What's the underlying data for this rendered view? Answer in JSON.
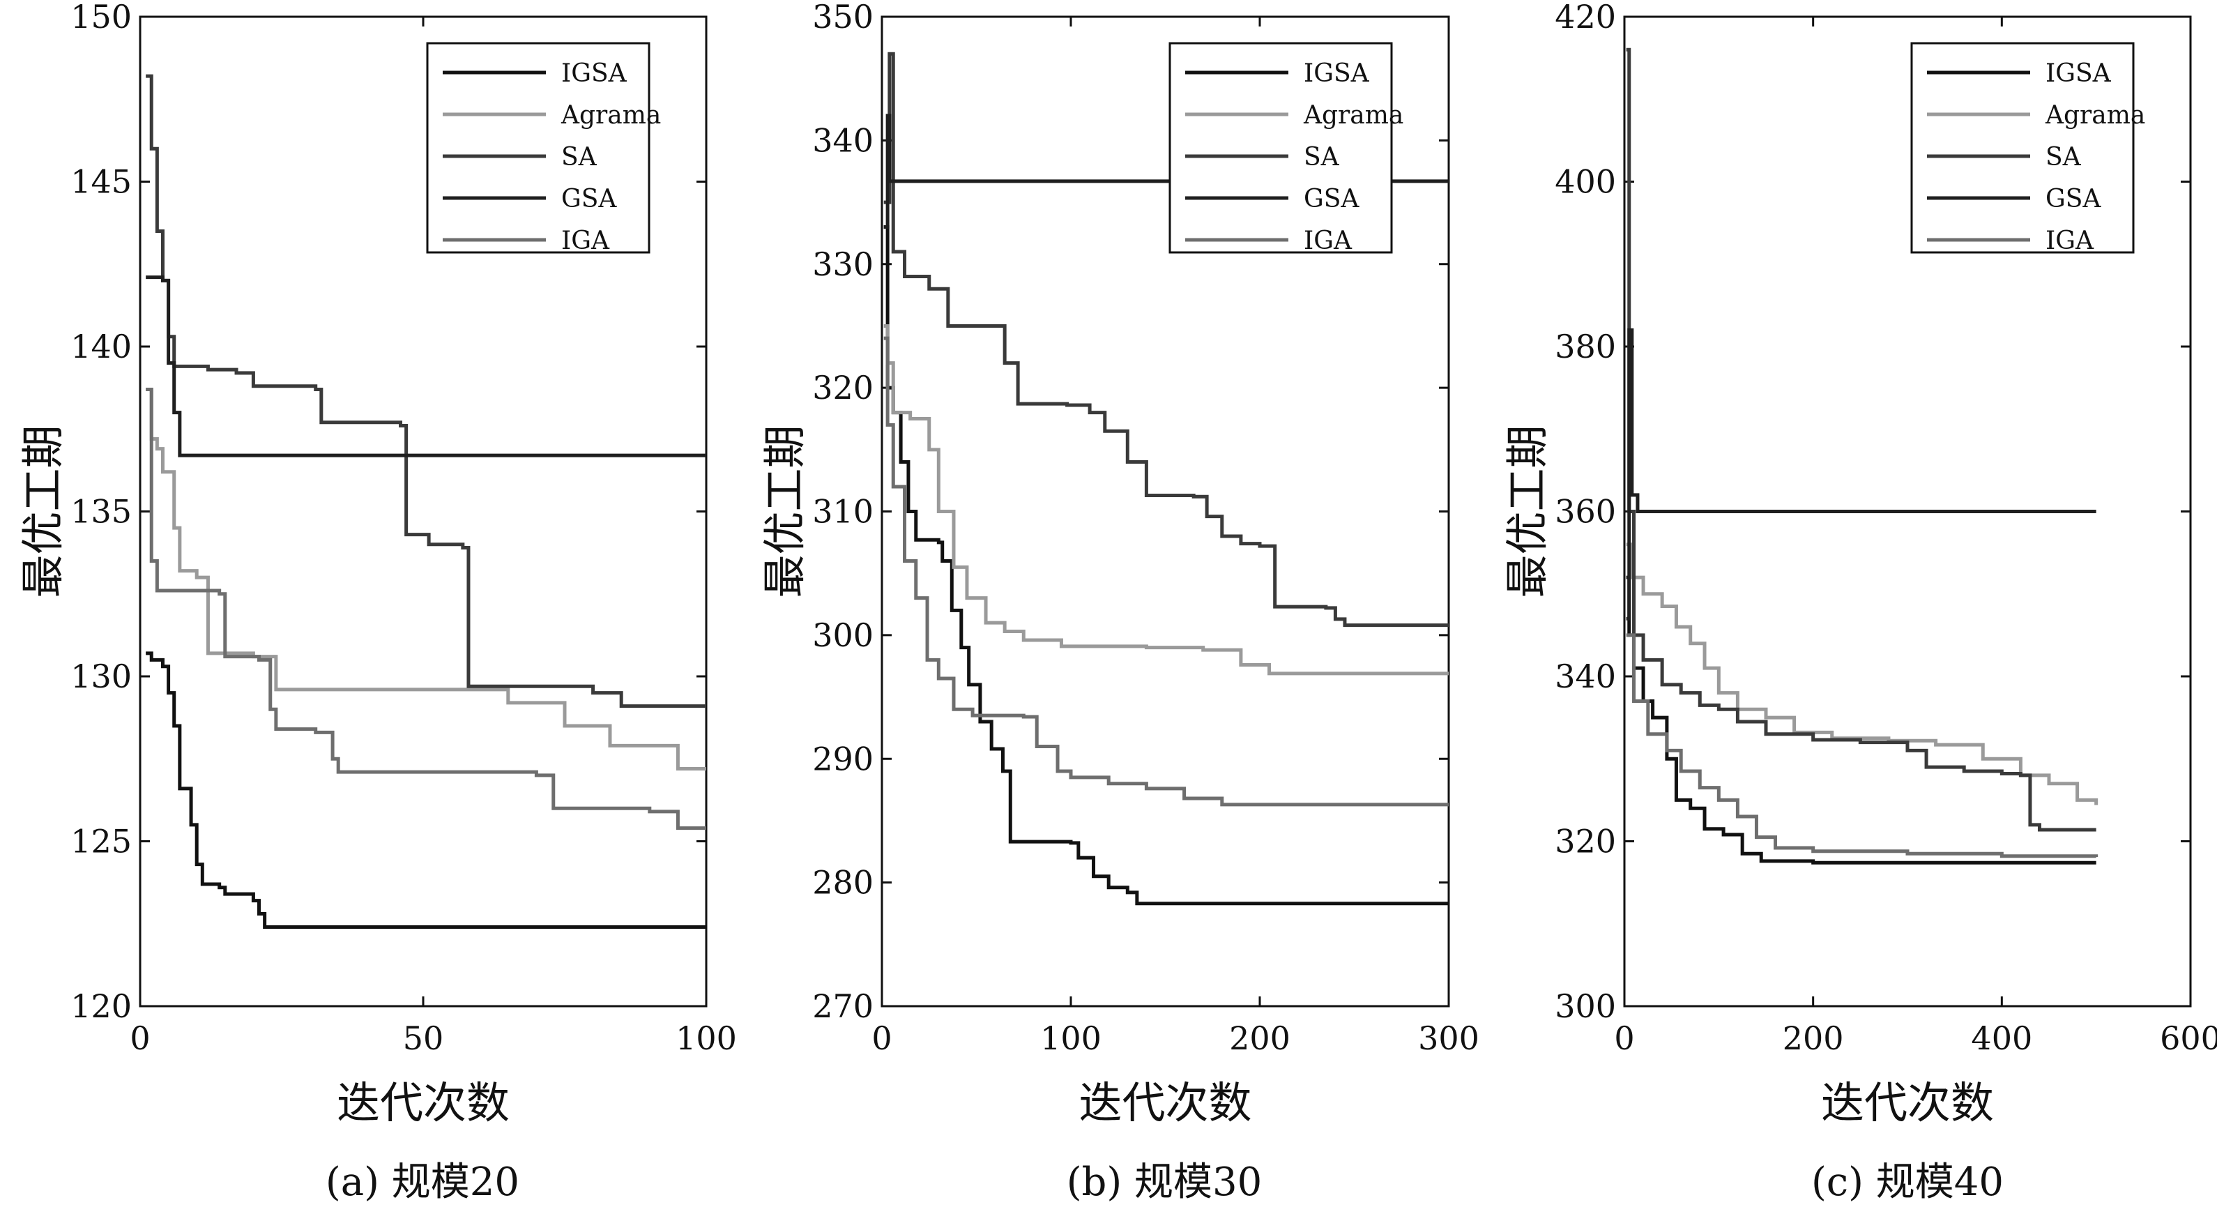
{
  "chart_data": [
    {
      "type": "line",
      "caption": "(a) 规模20",
      "xlabel": "迭代次数",
      "ylabel": "最优工期",
      "xlim": [
        0,
        100
      ],
      "ylim": [
        120,
        150
      ],
      "xticks": [
        0,
        50,
        100
      ],
      "yticks": [
        120,
        125,
        130,
        135,
        140,
        145,
        150
      ],
      "legend_position": "top-right",
      "series": [
        {
          "name": "IGSA",
          "color": "#111111",
          "points": [
            [
              1,
              130.7
            ],
            [
              2,
              130.5
            ],
            [
              4,
              130.3
            ],
            [
              5,
              129.5
            ],
            [
              6,
              128.5
            ],
            [
              7,
              126.6
            ],
            [
              9,
              125.5
            ],
            [
              10,
              124.3
            ],
            [
              11,
              123.7
            ],
            [
              14,
              123.6
            ],
            [
              15,
              123.4
            ],
            [
              20,
              123.2
            ],
            [
              21,
              122.8
            ],
            [
              22,
              122.4
            ],
            [
              100,
              122.4
            ]
          ]
        },
        {
          "name": "Agrama",
          "color": "#9a9a9a",
          "points": [
            [
              1,
              138.7
            ],
            [
              2,
              137.2
            ],
            [
              3,
              136.9
            ],
            [
              4,
              136.2
            ],
            [
              6,
              134.5
            ],
            [
              7,
              133.2
            ],
            [
              10,
              133.0
            ],
            [
              12,
              130.7
            ],
            [
              20,
              130.6
            ],
            [
              24,
              129.6
            ],
            [
              50,
              129.6
            ],
            [
              58,
              129.6
            ],
            [
              65,
              129.2
            ],
            [
              75,
              128.5
            ],
            [
              83,
              127.9
            ],
            [
              95,
              127.2
            ],
            [
              100,
              127.2
            ]
          ]
        },
        {
          "name": "SA",
          "color": "#3a3a3a",
          "points": [
            [
              1,
              148.2
            ],
            [
              2,
              146.0
            ],
            [
              3,
              143.5
            ],
            [
              4,
              142.0
            ],
            [
              5,
              140.3
            ],
            [
              6,
              139.4
            ],
            [
              12,
              139.3
            ],
            [
              17,
              139.2
            ],
            [
              20,
              138.8
            ],
            [
              31,
              138.7
            ],
            [
              32,
              137.7
            ],
            [
              46,
              137.6
            ],
            [
              47,
              134.3
            ],
            [
              51,
              134.0
            ],
            [
              57,
              133.9
            ],
            [
              58,
              129.7
            ],
            [
              80,
              129.5
            ],
            [
              85,
              129.1
            ],
            [
              100,
              129.1
            ]
          ]
        },
        {
          "name": "GSA",
          "color": "#1f1f1f",
          "points": [
            [
              1,
              142.1
            ],
            [
              4,
              142.0
            ],
            [
              5,
              139.5
            ],
            [
              6,
              138.0
            ],
            [
              7,
              136.7
            ],
            [
              100,
              136.7
            ]
          ]
        },
        {
          "name": "IGA",
          "color": "#6e6e6e",
          "points": [
            [
              1,
              138.7
            ],
            [
              2,
              133.5
            ],
            [
              3,
              132.6
            ],
            [
              14,
              132.5
            ],
            [
              15,
              130.6
            ],
            [
              21,
              130.5
            ],
            [
              23,
              129.0
            ],
            [
              24,
              128.4
            ],
            [
              31,
              128.3
            ],
            [
              34,
              127.5
            ],
            [
              35,
              127.1
            ],
            [
              70,
              127.0
            ],
            [
              73,
              126.0
            ],
            [
              90,
              125.9
            ],
            [
              95,
              125.4
            ],
            [
              100,
              125.4
            ]
          ]
        }
      ]
    },
    {
      "type": "line",
      "caption": "(b) 规模30",
      "xlabel": "迭代次数",
      "ylabel": "最优工期",
      "xlim": [
        0,
        300
      ],
      "ylim": [
        270,
        350
      ],
      "xticks": [
        0,
        100,
        200,
        300
      ],
      "yticks": [
        270,
        280,
        290,
        300,
        310,
        320,
        330,
        340,
        350
      ],
      "legend_position": "top-right",
      "series": [
        {
          "name": "IGSA",
          "color": "#111111",
          "points": [
            [
              1,
              333
            ],
            [
              3,
              320
            ],
            [
              6,
              318
            ],
            [
              10,
              314
            ],
            [
              14,
              310
            ],
            [
              18,
              307.7
            ],
            [
              30,
              307.5
            ],
            [
              32,
              306
            ],
            [
              37,
              302
            ],
            [
              42,
              299
            ],
            [
              46,
              296
            ],
            [
              52,
              293
            ],
            [
              58,
              290.8
            ],
            [
              64,
              289
            ],
            [
              68,
              283.3
            ],
            [
              100,
              283.2
            ],
            [
              104,
              282
            ],
            [
              112,
              280.5
            ],
            [
              120,
              279.6
            ],
            [
              130,
              279.2
            ],
            [
              135,
              278.3
            ],
            [
              300,
              278.3
            ]
          ]
        },
        {
          "name": "Agrama",
          "color": "#9a9a9a",
          "points": [
            [
              1,
              325
            ],
            [
              3,
              322
            ],
            [
              6,
              318
            ],
            [
              15,
              317.5
            ],
            [
              25,
              315
            ],
            [
              30,
              310
            ],
            [
              38,
              305.5
            ],
            [
              45,
              303
            ],
            [
              55,
              301
            ],
            [
              65,
              300.3
            ],
            [
              75,
              299.6
            ],
            [
              95,
              299.1
            ],
            [
              140,
              299
            ],
            [
              170,
              298.8
            ],
            [
              190,
              297.6
            ],
            [
              205,
              296.9
            ],
            [
              300,
              296.9
            ]
          ]
        },
        {
          "name": "SA",
          "color": "#3a3a3a",
          "points": [
            [
              1,
              335
            ],
            [
              4,
              347
            ],
            [
              6,
              331
            ],
            [
              12,
              329
            ],
            [
              25,
              328
            ],
            [
              35,
              325
            ],
            [
              62,
              325
            ],
            [
              65,
              322
            ],
            [
              72,
              318.7
            ],
            [
              98,
              318.6
            ],
            [
              110,
              318
            ],
            [
              118,
              316.5
            ],
            [
              130,
              314
            ],
            [
              140,
              311.3
            ],
            [
              165,
              311.2
            ],
            [
              172,
              309.6
            ],
            [
              180,
              308
            ],
            [
              190,
              307.4
            ],
            [
              200,
              307.2
            ],
            [
              208,
              302.3
            ],
            [
              235,
              302.2
            ],
            [
              240,
              301.3
            ],
            [
              245,
              300.8
            ],
            [
              300,
              300.8
            ]
          ]
        },
        {
          "name": "GSA",
          "color": "#1f1f1f",
          "points": [
            [
              1,
              333
            ],
            [
              3,
              342
            ],
            [
              4,
              336.7
            ],
            [
              300,
              336.7
            ]
          ]
        },
        {
          "name": "IGA",
          "color": "#6e6e6e",
          "points": [
            [
              1,
              324
            ],
            [
              3,
              317
            ],
            [
              6,
              312
            ],
            [
              12,
              306
            ],
            [
              18,
              303
            ],
            [
              24,
              298
            ],
            [
              30,
              296.5
            ],
            [
              38,
              294
            ],
            [
              48,
              293.5
            ],
            [
              75,
              293.4
            ],
            [
              82,
              291
            ],
            [
              93,
              289
            ],
            [
              100,
              288.5
            ],
            [
              120,
              288
            ],
            [
              140,
              287.6
            ],
            [
              160,
              286.8
            ],
            [
              180,
              286.3
            ],
            [
              300,
              286.3
            ]
          ]
        }
      ]
    },
    {
      "type": "line",
      "caption": "(c) 规模40",
      "xlabel": "迭代次数",
      "ylabel": "最优工期",
      "xlim": [
        0,
        600
      ],
      "ylim": [
        300,
        420
      ],
      "xticks": [
        0,
        200,
        400,
        600
      ],
      "yticks": [
        300,
        320,
        340,
        360,
        380,
        400,
        420
      ],
      "legend_position": "top-right",
      "series": [
        {
          "name": "IGSA",
          "color": "#111111",
          "points": [
            [
              2,
              352
            ],
            [
              5,
              345
            ],
            [
              10,
              341
            ],
            [
              20,
              337
            ],
            [
              30,
              335
            ],
            [
              45,
              330
            ],
            [
              55,
              325
            ],
            [
              70,
              324
            ],
            [
              85,
              321.5
            ],
            [
              105,
              320.8
            ],
            [
              125,
              318.5
            ],
            [
              145,
              317.6
            ],
            [
              200,
              317.4
            ],
            [
              500,
              317.4
            ]
          ]
        },
        {
          "name": "Agrama",
          "color": "#9a9a9a",
          "points": [
            [
              2,
              356
            ],
            [
              8,
              352
            ],
            [
              20,
              350
            ],
            [
              40,
              348.5
            ],
            [
              55,
              346
            ],
            [
              70,
              344
            ],
            [
              85,
              341
            ],
            [
              100,
              338
            ],
            [
              120,
              336
            ],
            [
              150,
              335
            ],
            [
              180,
              333.2
            ],
            [
              220,
              332.5
            ],
            [
              280,
              332.2
            ],
            [
              330,
              331.7
            ],
            [
              380,
              330
            ],
            [
              420,
              328
            ],
            [
              450,
              327
            ],
            [
              480,
              325
            ],
            [
              500,
              324.4
            ]
          ]
        },
        {
          "name": "SA",
          "color": "#3a3a3a",
          "points": [
            [
              2,
              416
            ],
            [
              5,
              360
            ],
            [
              10,
              345
            ],
            [
              20,
              342
            ],
            [
              40,
              339
            ],
            [
              60,
              338
            ],
            [
              80,
              336.5
            ],
            [
              100,
              336
            ],
            [
              120,
              334.5
            ],
            [
              150,
              333
            ],
            [
              200,
              332.3
            ],
            [
              250,
              332
            ],
            [
              300,
              331
            ],
            [
              320,
              329
            ],
            [
              360,
              328.5
            ],
            [
              400,
              328.2
            ],
            [
              420,
              328
            ],
            [
              430,
              322
            ],
            [
              440,
              321.4
            ],
            [
              500,
              321.4
            ]
          ]
        },
        {
          "name": "GSA",
          "color": "#1f1f1f",
          "points": [
            [
              2,
              347
            ],
            [
              5,
              382
            ],
            [
              8,
              362
            ],
            [
              14,
              360
            ],
            [
              500,
              360
            ]
          ]
        },
        {
          "name": "IGA",
          "color": "#6e6e6e",
          "points": [
            [
              2,
              345
            ],
            [
              10,
              337
            ],
            [
              25,
              333
            ],
            [
              45,
              331
            ],
            [
              60,
              328.5
            ],
            [
              80,
              326.5
            ],
            [
              100,
              325
            ],
            [
              120,
              323
            ],
            [
              140,
              320.5
            ],
            [
              160,
              319.2
            ],
            [
              200,
              318.8
            ],
            [
              300,
              318.5
            ],
            [
              400,
              318.2
            ],
            [
              500,
              318.1
            ]
          ]
        }
      ]
    }
  ]
}
